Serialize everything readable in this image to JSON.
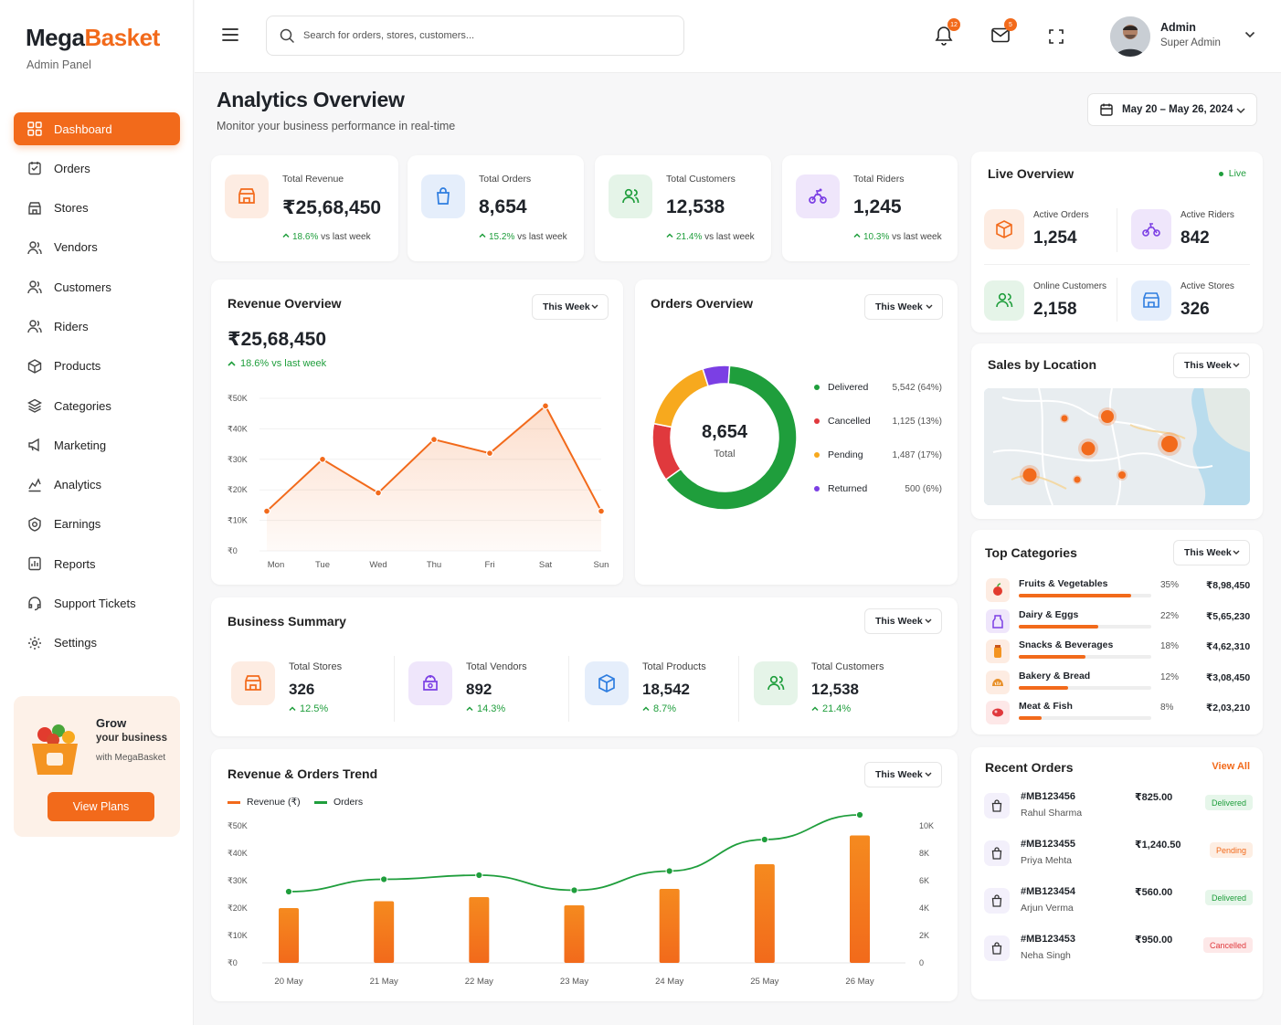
{
  "brand": {
    "name_a": "Mega",
    "name_b": "Basket",
    "subtitle": "Admin Panel"
  },
  "colors": {
    "accent": "#f26a1b",
    "green": "#1f9e3c",
    "red": "#e0393d",
    "yellow": "#f7a91e",
    "purple": "#7b3fe4",
    "blue": "#2e7de0"
  },
  "sidebar": {
    "items": [
      {
        "label": "Dashboard",
        "icon": "dashboard-icon",
        "active": true
      },
      {
        "label": "Orders",
        "icon": "orders-icon"
      },
      {
        "label": "Stores",
        "icon": "store-icon"
      },
      {
        "label": "Vendors",
        "icon": "vendors-icon"
      },
      {
        "label": "Customers",
        "icon": "customers-icon"
      },
      {
        "label": "Riders",
        "icon": "riders-icon"
      },
      {
        "label": "Products",
        "icon": "products-icon"
      },
      {
        "label": "Categories",
        "icon": "categories-icon"
      },
      {
        "label": "Marketing",
        "icon": "megaphone-icon"
      },
      {
        "label": "Analytics",
        "icon": "analytics-icon"
      },
      {
        "label": "Earnings",
        "icon": "earnings-icon"
      },
      {
        "label": "Reports",
        "icon": "reports-icon"
      },
      {
        "label": "Support Tickets",
        "icon": "support-icon"
      },
      {
        "label": "Settings",
        "icon": "gear-icon"
      }
    ]
  },
  "promo": {
    "line1": "Grow",
    "line2": "your business",
    "line3": "with MegaBasket",
    "button": "View Plans"
  },
  "header": {
    "search_placeholder": "Search for orders, stores, customers...",
    "notif_count": "12",
    "mail_count": "5",
    "user_name": "Admin",
    "user_role": "Super Admin"
  },
  "page": {
    "title": "Analytics Overview",
    "subtitle": "Monitor your business performance in real-time",
    "date_range": "May 20 – May 26, 2024"
  },
  "kpis": [
    {
      "label": "Total Revenue",
      "value": "₹25,68,450",
      "change": "18.6%",
      "suffix": "vs last week"
    },
    {
      "label": "Total Orders",
      "value": "8,654",
      "change": "15.2%",
      "suffix": "vs last week"
    },
    {
      "label": "Total Customers",
      "value": "12,538",
      "change": "21.4%",
      "suffix": "vs last week"
    },
    {
      "label": "Total Riders",
      "value": "1,245",
      "change": "10.3%",
      "suffix": "vs last week"
    }
  ],
  "live": {
    "title": "Live Overview",
    "status": "Live",
    "items": [
      {
        "label": "Active Orders",
        "value": "1,254"
      },
      {
        "label": "Active Riders",
        "value": "842"
      },
      {
        "label": "Online Customers",
        "value": "2,158"
      },
      {
        "label": "Active Stores",
        "value": "326"
      }
    ]
  },
  "revenue_overview": {
    "title": "Revenue Overview",
    "filter": "This Week",
    "value": "₹25,68,450",
    "change": "18.6% vs last week"
  },
  "orders_overview": {
    "title": "Orders Overview",
    "filter": "This Week",
    "total": "8,654",
    "total_label": "Total",
    "legend": [
      {
        "label": "Delivered",
        "value": "5,542 (64%)"
      },
      {
        "label": "Cancelled",
        "value": "1,125 (13%)"
      },
      {
        "label": "Pending",
        "value": "1,487 (17%)"
      },
      {
        "label": "Returned",
        "value": "500 (6%)"
      }
    ]
  },
  "sales_location": {
    "title": "Sales by Location",
    "filter": "This Week"
  },
  "top_categories": {
    "title": "Top Categories",
    "filter": "This Week",
    "items": [
      {
        "name": "Fruits & Vegetables",
        "pct": "35%",
        "amount": "₹8,98,450",
        "share": 0.85
      },
      {
        "name": "Dairy & Eggs",
        "pct": "22%",
        "amount": "₹5,65,230",
        "share": 0.6
      },
      {
        "name": "Snacks & Beverages",
        "pct": "18%",
        "amount": "₹4,62,310",
        "share": 0.5
      },
      {
        "name": "Bakery & Bread",
        "pct": "12%",
        "amount": "₹3,08,450",
        "share": 0.37
      },
      {
        "name": "Meat & Fish",
        "pct": "8%",
        "amount": "₹2,03,210",
        "share": 0.17
      }
    ]
  },
  "business_summary": {
    "title": "Business Summary",
    "filter": "This Week",
    "items": [
      {
        "label": "Total Stores",
        "value": "326",
        "change": "12.5%"
      },
      {
        "label": "Total Vendors",
        "value": "892",
        "change": "14.3%"
      },
      {
        "label": "Total Products",
        "value": "18,542",
        "change": "8.7%"
      },
      {
        "label": "Total Customers",
        "value": "12,538",
        "change": "21.4%"
      }
    ]
  },
  "recent_orders": {
    "title": "Recent Orders",
    "view_all": "View All",
    "items": [
      {
        "id": "#MB123456",
        "name": "Rahul Sharma",
        "amount": "₹825.00",
        "status": "Delivered"
      },
      {
        "id": "#MB123455",
        "name": "Priya Mehta",
        "amount": "₹1,240.50",
        "status": "Pending"
      },
      {
        "id": "#MB123454",
        "name": "Arjun Verma",
        "amount": "₹560.00",
        "status": "Delivered"
      },
      {
        "id": "#MB123453",
        "name": "Neha Singh",
        "amount": "₹950.00",
        "status": "Cancelled"
      }
    ]
  },
  "trend": {
    "title": "Revenue & Orders Trend",
    "filter": "This Week",
    "legend_revenue": "Revenue (₹)",
    "legend_orders": "Orders"
  },
  "chart_data": [
    {
      "type": "area",
      "categories": [
        "Mon",
        "Tue",
        "Wed",
        "Thu",
        "Fri",
        "Sat",
        "Sun"
      ],
      "values": [
        13000,
        30000,
        19000,
        36500,
        32000,
        47500,
        13000
      ],
      "ylim": [
        0,
        50000
      ],
      "yticks": [
        "₹0",
        "₹10K",
        "₹20K",
        "₹30K",
        "₹40K",
        "₹50K"
      ]
    },
    {
      "type": "pie",
      "categories": [
        "Delivered",
        "Cancelled",
        "Pending",
        "Returned"
      ],
      "values": [
        64,
        13,
        17,
        6
      ]
    },
    {
      "type": "bar",
      "categories": [
        "20 May",
        "21 May",
        "22 May",
        "23 May",
        "24 May",
        "25 May",
        "26 May"
      ],
      "series": [
        {
          "name": "Revenue (₹)",
          "values": [
            20000,
            22500,
            24000,
            21000,
            27000,
            36000,
            46500
          ]
        },
        {
          "name": "Orders",
          "values": [
            5200,
            6100,
            6400,
            5300,
            6700,
            9000,
            10800
          ]
        }
      ],
      "ylim": [
        0,
        50000
      ],
      "y2lim": [
        0,
        10000
      ],
      "yticks": [
        "₹0",
        "₹10K",
        "₹20K",
        "₹30K",
        "₹40K",
        "₹50K"
      ],
      "y2ticks": [
        "0",
        "2K",
        "4K",
        "6K",
        "8K",
        "10K"
      ]
    }
  ]
}
